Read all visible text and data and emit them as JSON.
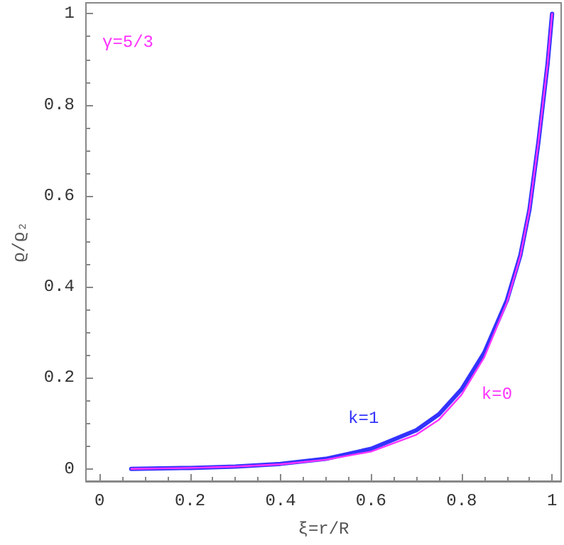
{
  "chart_data": {
    "type": "line",
    "xlabel": "ξ=r/R",
    "ylabel": "ϱ/ϱ₂",
    "annotations": [
      "γ=5/3"
    ],
    "xlim": [
      -0.03,
      1.02
    ],
    "ylim": [
      -0.027,
      1.024
    ],
    "xticks": [
      0,
      0.2,
      0.4,
      0.6,
      0.8,
      1
    ],
    "yticks": [
      0,
      0.2,
      0.4,
      0.6,
      0.8,
      1
    ],
    "grid": false,
    "legend": false,
    "marker": "none",
    "line_style": "solid",
    "series": [
      {
        "name": "k=1",
        "color": "#3333ff",
        "x": [
          0.07,
          0.2,
          0.3,
          0.4,
          0.5,
          0.6,
          0.7,
          0.75,
          0.8,
          0.85,
          0.9,
          0.93,
          0.95,
          0.97,
          0.99,
          1
        ],
        "values": [
          0,
          0.002,
          0.005,
          0.011,
          0.022,
          0.044,
          0.085,
          0.12,
          0.175,
          0.255,
          0.37,
          0.47,
          0.57,
          0.72,
          0.89,
          1
        ]
      },
      {
        "name": "k=0",
        "color": "#ff33ff",
        "x": [
          0.07,
          0.2,
          0.3,
          0.4,
          0.5,
          0.6,
          0.7,
          0.75,
          0.8,
          0.85,
          0.9,
          0.93,
          0.95,
          0.97,
          0.99,
          1
        ],
        "values": [
          0,
          0.002,
          0.005,
          0.01,
          0.02,
          0.038,
          0.075,
          0.108,
          0.163,
          0.245,
          0.365,
          0.468,
          0.57,
          0.72,
          0.89,
          1
        ]
      }
    ]
  }
}
